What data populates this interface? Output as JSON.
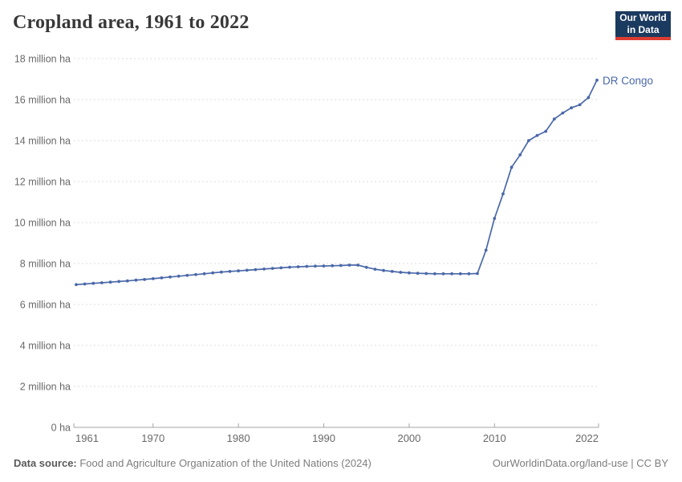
{
  "header": {
    "title": "Cropland area, 1961 to 2022"
  },
  "logo": {
    "line1": "Our World",
    "line2": "in Data"
  },
  "series_label": "DR Congo",
  "footer": {
    "source_label": "Data source:",
    "source_text": " Food and Agriculture Organization of the United Nations (2024)",
    "credit": "OurWorldinData.org/land-use | CC BY"
  },
  "colors": {
    "line": "#4a68a9",
    "series_label": "#4a68a9",
    "grid": "#dddddd",
    "axis": "#a5a5a5",
    "tick_text": "#686868",
    "title_text": "#383838",
    "logo_bg": "#1b3a5f",
    "logo_accent": "#dc3c32"
  },
  "chart_data": {
    "type": "line",
    "title": "Cropland area, 1961 to 2022",
    "entity": "DR Congo",
    "unit": "million ha",
    "xlim": [
      1961,
      2022
    ],
    "ylim": [
      0,
      18
    ],
    "grid": true,
    "legend_position": "end-of-line",
    "x": [
      1961,
      1962,
      1963,
      1964,
      1965,
      1966,
      1967,
      1968,
      1969,
      1970,
      1971,
      1972,
      1973,
      1974,
      1975,
      1976,
      1977,
      1978,
      1979,
      1980,
      1981,
      1982,
      1983,
      1984,
      1985,
      1986,
      1987,
      1988,
      1989,
      1990,
      1991,
      1992,
      1993,
      1994,
      1995,
      1996,
      1997,
      1998,
      1999,
      2000,
      2001,
      2002,
      2003,
      2004,
      2005,
      2006,
      2007,
      2008,
      2009,
      2010,
      2011,
      2012,
      2013,
      2014,
      2015,
      2016,
      2017,
      2018,
      2019,
      2020,
      2021,
      2022
    ],
    "series": [
      {
        "name": "DR Congo",
        "values_million_ha": [
          6.97,
          7.0,
          7.03,
          7.06,
          7.09,
          7.12,
          7.15,
          7.19,
          7.22,
          7.26,
          7.3,
          7.34,
          7.38,
          7.42,
          7.46,
          7.5,
          7.54,
          7.58,
          7.61,
          7.64,
          7.67,
          7.7,
          7.73,
          7.76,
          7.79,
          7.82,
          7.84,
          7.86,
          7.87,
          7.88,
          7.89,
          7.9,
          7.92,
          7.92,
          7.81,
          7.72,
          7.66,
          7.61,
          7.57,
          7.54,
          7.52,
          7.51,
          7.5,
          7.5,
          7.5,
          7.5,
          7.5,
          7.51,
          8.65,
          10.2,
          11.4,
          12.7,
          13.3,
          14.0,
          14.25,
          14.45,
          15.05,
          15.35,
          15.6,
          15.75,
          16.1,
          16.95
        ]
      }
    ],
    "y_tick_values": [
      0,
      2,
      4,
      6,
      8,
      10,
      12,
      14,
      16,
      18
    ],
    "y_tick_labels": [
      "0 ha",
      "2 million ha",
      "4 million ha",
      "6 million ha",
      "8 million ha",
      "10 million ha",
      "12 million ha",
      "14 million ha",
      "16 million ha",
      "18 million ha"
    ],
    "x_tick_values": [
      1961,
      1970,
      1980,
      1990,
      2000,
      2010,
      2022
    ],
    "x_tick_labels": [
      "1961",
      "1970",
      "1980",
      "1990",
      "2000",
      "2010",
      "2022"
    ]
  }
}
